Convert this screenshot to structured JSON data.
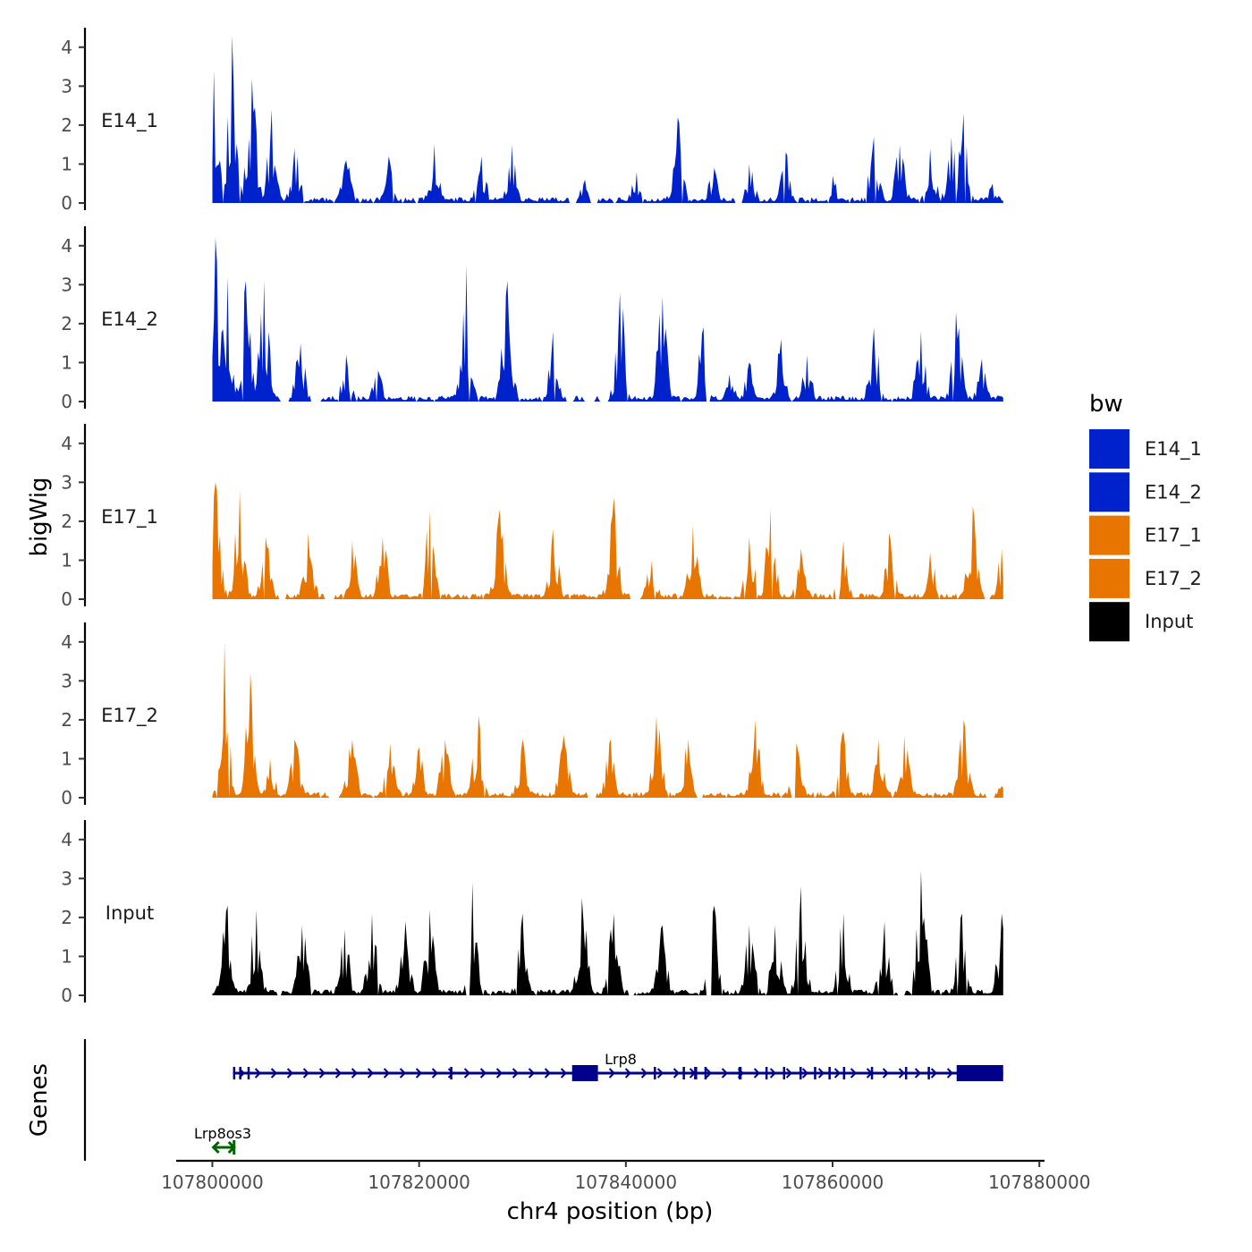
{
  "chart_data": {
    "type": "area",
    "ylabel": "bigWig",
    "xlabel": "chr4 position (bp)",
    "genes_label": "Genes",
    "xlim": [
      107800000,
      107876500
    ],
    "x_axis_range": [
      107796500,
      107880500
    ],
    "ylim": [
      0,
      4.5
    ],
    "y_ticks": [
      "0",
      "1",
      "2",
      "3",
      "4"
    ],
    "x_ticks": [
      {
        "value": 107800000,
        "label": "107800000"
      },
      {
        "value": 107820000,
        "label": "107820000"
      },
      {
        "value": 107840000,
        "label": "107840000"
      },
      {
        "value": 107860000,
        "label": "107860000"
      },
      {
        "value": 107880000,
        "label": "107880000"
      }
    ],
    "legend": {
      "title": "bw",
      "entries": [
        {
          "name": "E14_1",
          "color": "#0022CC"
        },
        {
          "name": "E14_2",
          "color": "#0022CC"
        },
        {
          "name": "E17_1",
          "color": "#E87500"
        },
        {
          "name": "E17_2",
          "color": "#E87500"
        },
        {
          "name": "Input",
          "color": "#000000"
        }
      ]
    },
    "series": [
      {
        "name": "E14_1",
        "color": "#0022CC",
        "peaks": [
          [
            107800200,
            3.4
          ],
          [
            107801900,
            4.3
          ],
          [
            107803800,
            3.2
          ],
          [
            107805800,
            2.4
          ],
          [
            107808000,
            1.4
          ],
          [
            107813000,
            1.1
          ],
          [
            107817000,
            1.2
          ],
          [
            107821500,
            1.5
          ],
          [
            107826000,
            1.2
          ],
          [
            107829000,
            1.5
          ],
          [
            107836000,
            0.6
          ],
          [
            107841000,
            0.8
          ],
          [
            107845000,
            2.2
          ],
          [
            107848500,
            0.9
          ],
          [
            107852000,
            1.0
          ],
          [
            107855500,
            1.3
          ],
          [
            107860000,
            0.7
          ],
          [
            107864000,
            1.7
          ],
          [
            107866500,
            1.5
          ],
          [
            107869500,
            1.4
          ],
          [
            107871500,
            1.7
          ],
          [
            107872700,
            2.3
          ],
          [
            107875500,
            0.5
          ]
        ],
        "gaps": [
          [
            107834500,
            107835300
          ],
          [
            107836600,
            107837300
          ],
          [
            107850600,
            107851300
          ]
        ],
        "seed": 11
      },
      {
        "name": "E14_2",
        "color": "#0022CC",
        "peaks": [
          [
            107800300,
            4.2
          ],
          [
            107801400,
            3.2
          ],
          [
            107803200,
            3.1
          ],
          [
            107805000,
            3.1
          ],
          [
            107808500,
            1.5
          ],
          [
            107813000,
            1.2
          ],
          [
            107816000,
            0.8
          ],
          [
            107824500,
            3.5
          ],
          [
            107828500,
            3.1
          ],
          [
            107833000,
            1.8
          ],
          [
            107839500,
            2.8
          ],
          [
            107843500,
            2.7
          ],
          [
            107847500,
            1.9
          ],
          [
            107850000,
            0.7
          ],
          [
            107852000,
            1.0
          ],
          [
            107855000,
            1.6
          ],
          [
            107857500,
            1.2
          ],
          [
            107864000,
            1.9
          ],
          [
            107868500,
            1.8
          ],
          [
            107872000,
            2.3
          ],
          [
            107874500,
            1.1
          ]
        ],
        "gaps": [
          [
            107806600,
            107807400
          ],
          [
            107809500,
            107810500
          ],
          [
            107834200,
            107835000
          ],
          [
            107836000,
            107837000
          ],
          [
            107837400,
            107838300
          ],
          [
            107847700,
            107848200
          ]
        ],
        "seed": 23
      },
      {
        "name": "E17_1",
        "color": "#E87500",
        "peaks": [
          [
            107800300,
            3.0
          ],
          [
            107802600,
            2.8
          ],
          [
            107805200,
            1.6
          ],
          [
            107809300,
            1.7
          ],
          [
            107813500,
            1.5
          ],
          [
            107816500,
            1.6
          ],
          [
            107821000,
            2.3
          ],
          [
            107827800,
            2.3
          ],
          [
            107833000,
            1.8
          ],
          [
            107838800,
            2.6
          ],
          [
            107842500,
            1.0
          ],
          [
            107846500,
            1.9
          ],
          [
            107852000,
            1.6
          ],
          [
            107854000,
            2.3
          ],
          [
            107857000,
            1.3
          ],
          [
            107861000,
            1.5
          ],
          [
            107865500,
            1.7
          ],
          [
            107869500,
            1.2
          ],
          [
            107873500,
            2.4
          ],
          [
            107876400,
            1.3
          ]
        ],
        "gaps": [
          [
            107806500,
            107807200
          ],
          [
            107810800,
            107811800
          ],
          [
            107840400,
            107841400
          ],
          [
            107860200,
            107860700
          ],
          [
            107874600,
            107875200
          ]
        ],
        "seed": 37
      },
      {
        "name": "E17_2",
        "color": "#E87500",
        "peaks": [
          [
            107801200,
            4.0
          ],
          [
            107803700,
            3.2
          ],
          [
            107805600,
            1.0
          ],
          [
            107808000,
            1.5
          ],
          [
            107813500,
            1.5
          ],
          [
            107817200,
            1.4
          ],
          [
            107820000,
            1.3
          ],
          [
            107822500,
            1.5
          ],
          [
            107825700,
            2.1
          ],
          [
            107830000,
            1.5
          ],
          [
            107834000,
            1.6
          ],
          [
            107838500,
            1.5
          ],
          [
            107843000,
            2.1
          ],
          [
            107846000,
            1.5
          ],
          [
            107852500,
            2.0
          ],
          [
            107856500,
            1.4
          ],
          [
            107861000,
            1.7
          ],
          [
            107864500,
            1.5
          ],
          [
            107867000,
            1.6
          ],
          [
            107872700,
            2.0
          ],
          [
            107876300,
            0.3
          ]
        ],
        "gaps": [
          [
            107811300,
            107812300
          ],
          [
            107836300,
            107837200
          ],
          [
            107846900,
            107847500
          ],
          [
            107856000,
            107856500
          ],
          [
            107874800,
            107875700
          ]
        ],
        "seed": 53
      },
      {
        "name": "Input",
        "color": "#000000",
        "peaks": [
          [
            107801400,
            2.3
          ],
          [
            107804200,
            2.2
          ],
          [
            107808700,
            1.8
          ],
          [
            107812800,
            1.7
          ],
          [
            107815500,
            2.1
          ],
          [
            107818700,
            1.9
          ],
          [
            107821000,
            2.2
          ],
          [
            107825200,
            2.9
          ],
          [
            107830000,
            2.1
          ],
          [
            107835800,
            2.5
          ],
          [
            107838800,
            2.1
          ],
          [
            107843500,
            1.8
          ],
          [
            107848500,
            2.3
          ],
          [
            107852000,
            1.8
          ],
          [
            107854500,
            1.8
          ],
          [
            107857000,
            2.8
          ],
          [
            107861000,
            2.1
          ],
          [
            107865000,
            1.9
          ],
          [
            107868600,
            3.2
          ],
          [
            107872500,
            2.1
          ],
          [
            107876400,
            2.1
          ]
        ],
        "gaps": [
          [
            107806200,
            107806700
          ],
          [
            107824500,
            107825000
          ],
          [
            107840300,
            107840800
          ],
          [
            107847800,
            107848300
          ],
          [
            107866300,
            107866800
          ]
        ],
        "seed": 71
      }
    ],
    "genes": [
      {
        "name": "Lrp8",
        "strand": "+",
        "color": "#00008B",
        "start": 107802000,
        "end": 107876500,
        "label_pos": 107839500,
        "exons": [
          [
            107802000,
            107802150
          ],
          [
            107802600,
            107802700
          ],
          [
            107803400,
            107803500
          ],
          [
            107823000,
            107823100
          ],
          [
            107834800,
            107837300
          ],
          [
            107842700,
            107842800
          ],
          [
            107845500,
            107845600
          ],
          [
            107846600,
            107846900
          ],
          [
            107847600,
            107847700
          ],
          [
            107850900,
            107851200
          ],
          [
            107853500,
            107853700
          ],
          [
            107855200,
            107855350
          ],
          [
            107856800,
            107857000
          ],
          [
            107858200,
            107858300
          ],
          [
            107859600,
            107859800
          ],
          [
            107861000,
            107861200
          ],
          [
            107863700,
            107863800
          ],
          [
            107867000,
            107867100
          ],
          [
            107869200,
            107869400
          ],
          [
            107872000,
            107876500
          ]
        ]
      },
      {
        "name": "Lrp8os3",
        "strand": "both",
        "color": "#006400",
        "start": 107800100,
        "end": 107802100,
        "label_pos": 107801000,
        "exons": []
      }
    ]
  }
}
